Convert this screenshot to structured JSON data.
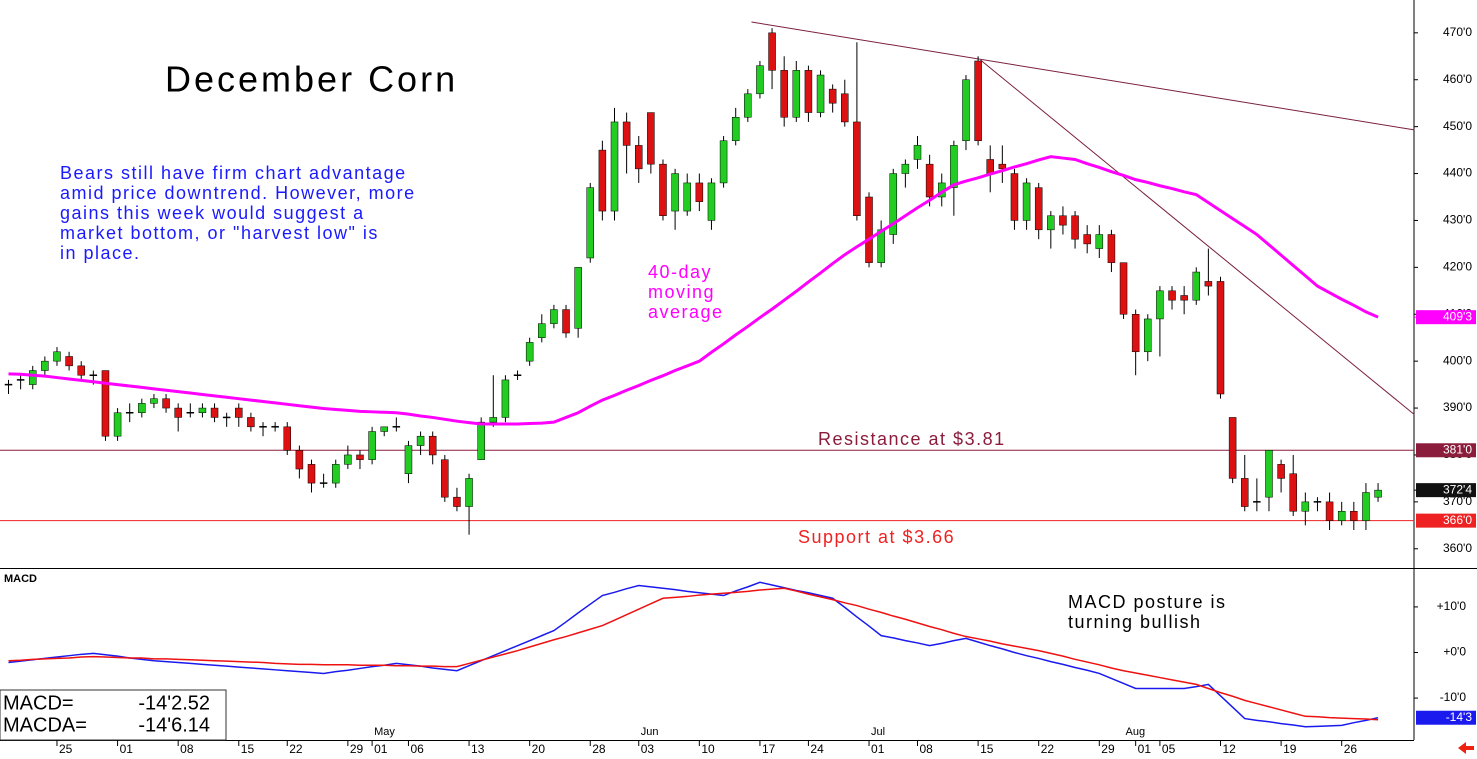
{
  "chart_data": [
    {
      "type": "candlestick",
      "title": "December Corn",
      "note_lines": [
        "Bears still have firm chart advantage",
        "amid price downtrend. However, more",
        "gains this week would suggest a",
        "market bottom, or \"harvest low\" is",
        "in place."
      ],
      "up_color": "#22cc22",
      "down_color": "#dd1111",
      "open": [
        395,
        396,
        395,
        398,
        400,
        401,
        399,
        397,
        398,
        384,
        389,
        389,
        391,
        392,
        390,
        389,
        389,
        390,
        388,
        390,
        388,
        386,
        386,
        386,
        381,
        378,
        374,
        374,
        378,
        380,
        379,
        385,
        386,
        376,
        382,
        384,
        379,
        371,
        369,
        379,
        387,
        388,
        397,
        400,
        405,
        408,
        411,
        407,
        422,
        445,
        432,
        451,
        446,
        453,
        442,
        432,
        432,
        438,
        430,
        438,
        447,
        452,
        457,
        470,
        462,
        452,
        462,
        453,
        458,
        457,
        451,
        435,
        421,
        427,
        440,
        443,
        442,
        435,
        437,
        447,
        464,
        443,
        442,
        440,
        430,
        437,
        428,
        431,
        431,
        427,
        424,
        427,
        421,
        410,
        402,
        409,
        415,
        414,
        413,
        417,
        417,
        388,
        375,
        370,
        371,
        378,
        376,
        368,
        370,
        370,
        366,
        368,
        366,
        371
      ],
      "high": [
        396,
        397,
        399,
        401,
        403,
        402,
        400,
        398,
        398,
        390,
        391,
        392,
        393,
        393,
        391,
        391,
        391,
        391,
        389,
        391,
        389,
        387,
        387,
        387,
        382,
        379,
        376,
        379,
        382,
        381,
        386,
        386,
        388,
        383,
        385,
        385,
        380,
        373,
        376,
        388,
        397,
        397,
        398,
        405,
        410,
        412,
        412,
        420,
        438,
        447,
        454,
        453,
        448,
        453,
        443,
        441,
        440,
        440,
        439,
        448,
        454,
        458,
        464,
        471,
        465,
        464,
        463,
        462,
        459,
        460,
        468,
        436,
        430,
        441,
        443,
        448,
        444,
        440,
        447,
        461,
        465,
        446,
        446,
        441,
        439,
        438,
        432,
        433,
        432,
        429,
        429,
        428,
        421,
        411,
        410,
        416,
        416,
        416,
        420,
        424,
        418,
        388,
        380,
        375,
        381,
        379,
        380,
        372,
        371,
        372,
        370,
        370,
        374,
        374
      ],
      "low": [
        393,
        394,
        394,
        397,
        399,
        398,
        396,
        395,
        383,
        383,
        387,
        388,
        390,
        389,
        385,
        388,
        388,
        387,
        386,
        386,
        385,
        384,
        385,
        380,
        375,
        372,
        373,
        373,
        377,
        377,
        378,
        384,
        385,
        374,
        380,
        378,
        370,
        368,
        363,
        379,
        386,
        387,
        396,
        399,
        404,
        407,
        405,
        405,
        421,
        430,
        430,
        440,
        438,
        440,
        430,
        428,
        431,
        432,
        428,
        437,
        446,
        451,
        456,
        458,
        450,
        451,
        451,
        452,
        453,
        450,
        430,
        420,
        420,
        425,
        437,
        441,
        433,
        433,
        431,
        445,
        446,
        436,
        438,
        428,
        428,
        426,
        424,
        427,
        424,
        423,
        422,
        419,
        409,
        397,
        400,
        401,
        411,
        410,
        412,
        414,
        392,
        374,
        368,
        368,
        368,
        372,
        367,
        365,
        368,
        364,
        365,
        364,
        364,
        370
      ],
      "close": [
        395,
        396,
        398,
        400,
        402,
        399,
        397,
        397,
        384,
        389,
        389,
        391,
        392,
        390,
        388,
        389,
        390,
        388,
        388,
        388,
        386,
        386,
        386,
        381,
        377,
        374,
        374,
        378,
        380,
        379,
        385,
        386,
        386,
        382,
        384,
        380,
        371,
        369,
        375,
        387,
        388,
        396,
        397,
        404,
        408,
        411,
        406,
        420,
        437,
        432,
        451,
        446,
        441,
        442,
        431,
        440,
        438,
        434,
        438,
        447,
        452,
        457,
        463,
        462,
        452,
        462,
        453,
        461,
        455,
        451,
        431,
        421,
        428,
        440,
        442,
        446,
        435,
        438,
        446,
        460,
        447,
        440,
        441,
        430,
        438,
        428,
        431,
        429,
        426,
        425,
        427,
        421,
        410,
        402,
        409,
        415,
        413,
        413,
        419,
        416,
        393,
        375,
        369,
        370,
        381,
        375,
        368,
        370,
        370,
        366,
        368,
        366,
        372,
        372.5
      ],
      "close_label": "372'4",
      "ma": {
        "label_lines": [
          "40-day",
          "moving",
          "average"
        ],
        "color": "#ff00ff",
        "last_label": "409'3",
        "values": [
          397.3,
          397.2,
          397.0,
          396.8,
          396.5,
          396.2,
          395.9,
          395.6,
          395.3,
          395.0,
          394.7,
          394.4,
          394.1,
          393.8,
          393.5,
          393.2,
          392.9,
          392.6,
          392.3,
          392.0,
          391.7,
          391.4,
          391.1,
          390.8,
          390.5,
          390.2,
          389.9,
          389.7,
          389.5,
          389.3,
          389.2,
          389.1,
          389.0,
          388.7,
          388.3,
          388.0,
          387.6,
          387.2,
          386.9,
          386.6,
          386.6,
          386.6,
          386.6,
          386.7,
          386.8,
          387.0,
          388.0,
          389.0,
          390.4,
          391.7,
          392.7,
          393.8,
          394.8,
          395.9,
          396.9,
          398.0,
          399.0,
          400.0,
          401.9,
          403.7,
          405.6,
          407.4,
          409.3,
          411.1,
          413.0,
          414.9,
          416.9,
          418.8,
          420.8,
          422.7,
          424.4,
          426.0,
          427.7,
          429.3,
          431.0,
          432.7,
          434.3,
          436.0,
          437.6,
          438.4,
          439.1,
          439.9,
          440.6,
          441.4,
          442.1,
          442.9,
          443.6,
          443.3,
          443.0,
          442.1,
          441.3,
          440.4,
          439.6,
          438.7,
          438.1,
          437.4,
          436.8,
          436.1,
          435.5,
          433.8,
          432.1,
          430.4,
          428.7,
          427.0,
          424.8,
          422.6,
          420.4,
          418.2,
          416.0,
          414.6,
          413.2,
          411.9,
          410.5,
          409.375
        ]
      },
      "levels": [
        {
          "value": 381,
          "label": "Resistance at $3.81",
          "tag": "381'0",
          "color": "#8b1c3c"
        },
        {
          "value": 366,
          "label": "Support at $3.66",
          "tag": "366'0",
          "color": "#ee2222"
        }
      ],
      "trendlines": [
        {
          "x": [
            61.3,
            116
          ],
          "y": [
            472.3,
            449.3
          ],
          "color": "#7a1f3f"
        },
        {
          "x": [
            80.2,
            116
          ],
          "y": [
            464.2,
            388.6
          ],
          "color": "#7a1f3f"
        }
      ],
      "ylim": [
        355.9,
        477
      ],
      "yticks": [
        {
          "value": 470,
          "label": "470'0"
        },
        {
          "value": 460,
          "label": "460'0"
        },
        {
          "value": 450,
          "label": "450'0"
        },
        {
          "value": 440,
          "label": "440'0"
        },
        {
          "value": 430,
          "label": "430'0"
        },
        {
          "value": 420,
          "label": "420'0"
        },
        {
          "value": 410,
          "label": "410'0"
        },
        {
          "value": 400,
          "label": "400'0"
        },
        {
          "value": 390,
          "label": "390'0"
        },
        {
          "value": 380,
          "label": "380'0"
        },
        {
          "value": 370,
          "label": "370'0"
        },
        {
          "value": 360,
          "label": "360'0"
        }
      ]
    },
    {
      "type": "line",
      "title": "MACD",
      "note_lines": [
        "MACD posture is",
        "turning bullish"
      ],
      "categories": [
        null,
        null,
        null,
        null,
        "25",
        null,
        null,
        null,
        null,
        "01",
        null,
        null,
        null,
        null,
        "08",
        null,
        null,
        null,
        null,
        "15",
        null,
        null,
        null,
        "22",
        null,
        null,
        null,
        null,
        "29",
        null,
        "01",
        null,
        null,
        "06",
        null,
        null,
        null,
        null,
        "13",
        null,
        null,
        null,
        null,
        "20",
        null,
        null,
        null,
        null,
        "28",
        null,
        null,
        null,
        "03",
        null,
        null,
        null,
        null,
        "10",
        null,
        null,
        null,
        null,
        "17",
        null,
        null,
        null,
        "24",
        null,
        null,
        null,
        null,
        "01",
        null,
        null,
        null,
        "08",
        null,
        null,
        null,
        null,
        "15",
        null,
        null,
        null,
        null,
        "22",
        null,
        null,
        null,
        null,
        "29",
        null,
        null,
        "01",
        null,
        "05",
        null,
        null,
        null,
        null,
        "12",
        null,
        null,
        null,
        null,
        "19",
        null,
        null,
        null,
        null,
        "26",
        null,
        null,
        null
      ],
      "months": [
        null,
        null,
        null,
        null,
        null,
        null,
        null,
        null,
        null,
        null,
        null,
        null,
        null,
        null,
        null,
        null,
        null,
        null,
        null,
        null,
        null,
        null,
        null,
        null,
        null,
        null,
        null,
        null,
        null,
        null,
        "May",
        null,
        null,
        null,
        null,
        null,
        null,
        null,
        null,
        null,
        null,
        null,
        null,
        null,
        null,
        null,
        null,
        null,
        null,
        null,
        null,
        null,
        "Jun",
        null,
        null,
        null,
        null,
        null,
        null,
        null,
        null,
        null,
        null,
        null,
        null,
        null,
        null,
        null,
        null,
        null,
        null,
        "Jul",
        null,
        null,
        null,
        null,
        null,
        null,
        null,
        null,
        null,
        null,
        null,
        null,
        null,
        null,
        null,
        null,
        null,
        null,
        null,
        null,
        "Aug",
        null,
        null,
        null,
        null,
        null,
        null,
        null,
        null,
        null,
        null,
        null,
        null,
        null,
        null,
        null,
        null,
        null,
        null,
        null,
        null
      ],
      "series": [
        {
          "name": "MACD=",
          "readout": "-14'2.52",
          "tag": "-14'3",
          "color": "#1a1aee",
          "values": [
            -2.2,
            -1.9,
            -1.6,
            -1.3,
            -1.0,
            -0.7,
            -0.4,
            -0.2,
            -0.5,
            -0.8,
            -1.2,
            -1.5,
            -1.8,
            -2.0,
            -2.2,
            -2.4,
            -2.6,
            -2.8,
            -3.0,
            -3.2,
            -3.4,
            -3.6,
            -3.8,
            -4.0,
            -4.2,
            -4.4,
            -4.6,
            -4.2,
            -3.9,
            -3.5,
            -3.1,
            -2.8,
            -2.4,
            -2.7,
            -3.0,
            -3.4,
            -3.7,
            -4.0,
            -2.9,
            -1.8,
            -0.7,
            0.4,
            1.5,
            2.6,
            3.7,
            4.8,
            6.7,
            8.7,
            10.6,
            12.5,
            13.2,
            14.0,
            14.7,
            14.4,
            14.1,
            13.8,
            13.4,
            13.1,
            12.8,
            12.5,
            13.5,
            14.4,
            15.4,
            14.8,
            14.2,
            13.6,
            13.1,
            12.5,
            11.9,
            9.9,
            7.8,
            5.8,
            3.7,
            3.2,
            2.6,
            2.1,
            1.5,
            2.0,
            2.6,
            3.1,
            2.3,
            1.5,
            0.8,
            0.0,
            -0.7,
            -1.3,
            -2.0,
            -2.6,
            -3.3,
            -3.9,
            -4.6,
            -5.7,
            -6.8,
            -7.9,
            -7.9,
            -7.9,
            -7.9,
            -7.9,
            -7.5,
            -7.0,
            -9.5,
            -12.0,
            -14.5,
            -14.9,
            -15.2,
            -15.6,
            -15.9,
            -16.3,
            -16.2,
            -16.1,
            -16.0,
            -15.4,
            -14.9,
            -14.315
          ]
        },
        {
          "name": "MACDA=",
          "readout": "-14'6.14",
          "color": "#ee1111",
          "values": [
            -1.8,
            -1.7,
            -1.5,
            -1.4,
            -1.3,
            -1.2,
            -1.0,
            -0.9,
            -1.0,
            -1.1,
            -1.2,
            -1.2,
            -1.4,
            -1.4,
            -1.5,
            -1.6,
            -1.7,
            -1.8,
            -1.9,
            -2.0,
            -2.1,
            -2.2,
            -2.4,
            -2.5,
            -2.6,
            -2.6,
            -2.7,
            -2.7,
            -2.7,
            -2.8,
            -2.8,
            -2.8,
            -2.9,
            -2.9,
            -3.0,
            -3.0,
            -3.1,
            -3.1,
            -2.4,
            -1.7,
            -1.0,
            -0.3,
            0.4,
            1.2,
            2.0,
            2.8,
            3.5,
            4.3,
            5.1,
            5.9,
            7.1,
            8.3,
            9.5,
            10.7,
            11.9,
            12.1,
            12.3,
            12.6,
            12.8,
            13.0,
            13.2,
            13.4,
            13.7,
            13.9,
            14.1,
            13.5,
            12.8,
            12.2,
            11.6,
            10.9,
            10.3,
            9.5,
            8.8,
            8.0,
            7.3,
            6.5,
            5.7,
            5.0,
            4.2,
            3.5,
            3.0,
            2.5,
            1.9,
            1.4,
            0.9,
            0.4,
            -0.2,
            -0.8,
            -1.5,
            -2.1,
            -2.7,
            -3.4,
            -4.0,
            -4.5,
            -5.0,
            -5.5,
            -6.0,
            -6.5,
            -7.0,
            -7.9,
            -8.8,
            -9.6,
            -10.5,
            -11.2,
            -11.9,
            -12.6,
            -13.3,
            -14.0,
            -14.1,
            -14.3,
            -14.4,
            -14.5,
            -14.6,
            -14.77
          ]
        }
      ],
      "ylim": [
        -19.2,
        18.1
      ],
      "yticks": [
        {
          "value": 10,
          "label": "+10'0"
        },
        {
          "value": 0,
          "label": "+0'0"
        },
        {
          "value": -10,
          "label": "-10'0"
        }
      ]
    }
  ]
}
